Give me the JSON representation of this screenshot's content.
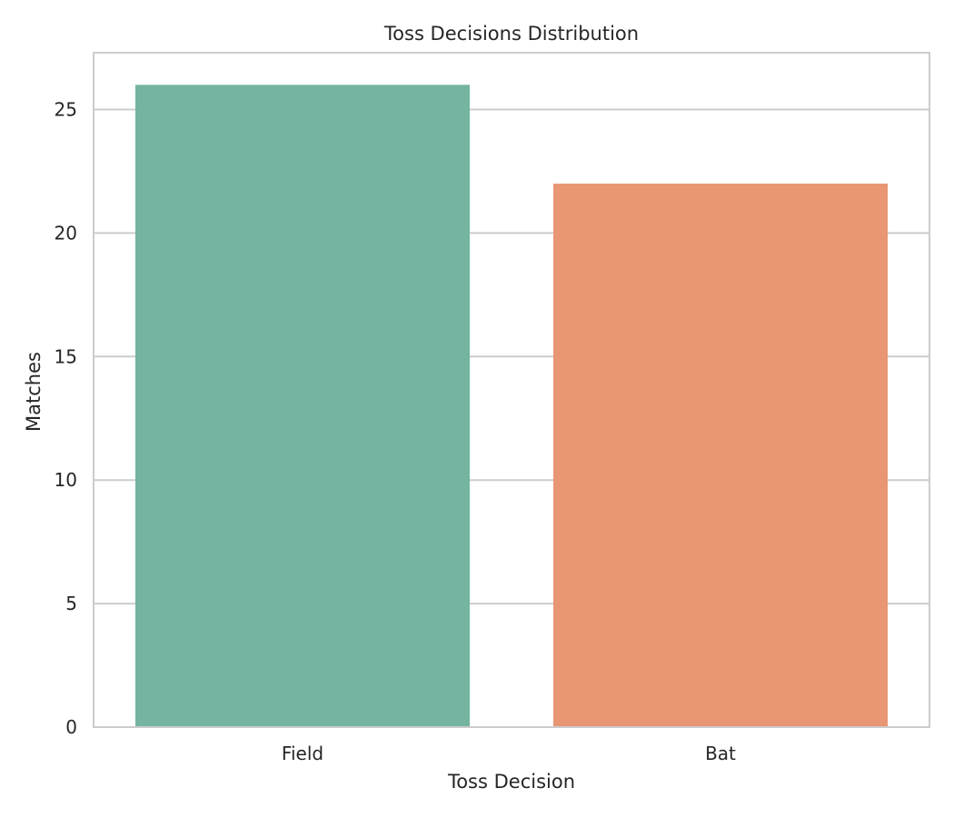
{
  "chart_data": {
    "type": "bar",
    "title": "Toss Decisions Distribution",
    "xlabel": "Toss Decision",
    "ylabel": "Matches",
    "categories": [
      "Field",
      "Bat"
    ],
    "values": [
      26,
      22
    ],
    "colors": [
      "#74b4a0",
      "#e89674"
    ],
    "ylim": [
      0,
      27.3
    ],
    "yticks": [
      0,
      5,
      10,
      15,
      20,
      25
    ],
    "grid": true,
    "legend": "none",
    "grid_color": "#cccccc",
    "frame_color": "#cccccc"
  }
}
